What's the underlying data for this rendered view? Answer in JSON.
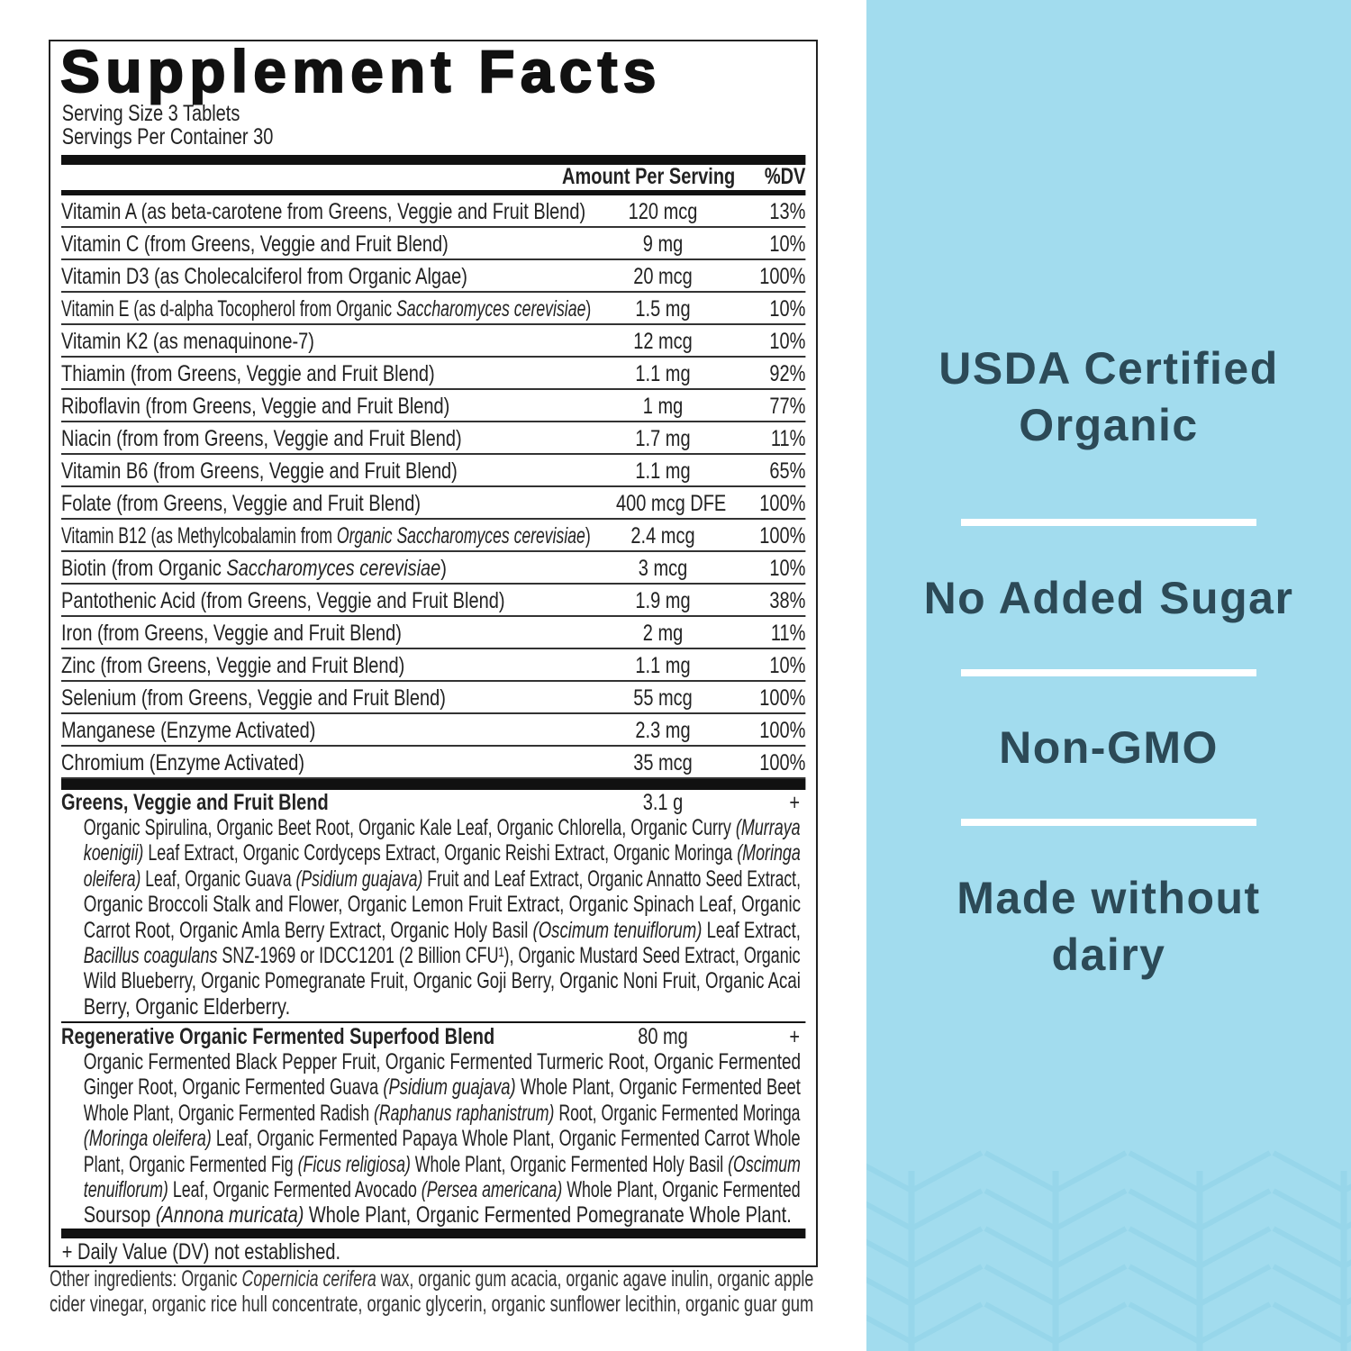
{
  "label": {
    "title": "Supplement Facts",
    "serving_size": "Serving Size 3 Tablets",
    "servings_per_container": "Servings Per Container 30",
    "header_amount": "Amount Per Serving",
    "header_dv": "%DV",
    "rows": [
      {
        "name": [
          {
            "t": "Vitamin A (as beta-carotene from Greens, Veggie and Fruit Blend)"
          }
        ],
        "amount": "120 mcg",
        "dv": "13%"
      },
      {
        "name": [
          {
            "t": "Vitamin C (from Greens, Veggie and Fruit Blend)"
          }
        ],
        "amount": "9 mg",
        "dv": "10%"
      },
      {
        "name": [
          {
            "t": "Vitamin D3 (as Cholecalciferol from Organic Algae)"
          }
        ],
        "amount": "20 mcg",
        "dv": "100%"
      },
      {
        "name": [
          {
            "t": "Vitamin E (as d-alpha Tocopherol from Organic "
          },
          {
            "t": "Saccharomyces cerevisiae",
            "i": true
          },
          {
            "t": ")"
          }
        ],
        "amount": "1.5 mg",
        "dv": "10%"
      },
      {
        "name": [
          {
            "t": "Vitamin K2 (as menaquinone-7)"
          }
        ],
        "amount": "12 mcg",
        "dv": "10%"
      },
      {
        "name": [
          {
            "t": "Thiamin (from Greens, Veggie and Fruit Blend)"
          }
        ],
        "amount": "1.1 mg",
        "dv": "92%"
      },
      {
        "name": [
          {
            "t": "Riboflavin (from Greens, Veggie and Fruit Blend)"
          }
        ],
        "amount": "1 mg",
        "dv": "77%"
      },
      {
        "name": [
          {
            "t": "Niacin (from from Greens, Veggie and Fruit Blend)"
          }
        ],
        "amount": "1.7 mg",
        "dv": "11%"
      },
      {
        "name": [
          {
            "t": "Vitamin B6 (from Greens, Veggie and Fruit Blend)"
          }
        ],
        "amount": "1.1 mg",
        "dv": "65%"
      },
      {
        "name": [
          {
            "t": "Folate (from Greens, Veggie and Fruit Blend)"
          }
        ],
        "amount": "400 mcg DFE",
        "dv": "100%"
      },
      {
        "name": [
          {
            "t": "Vitamin B12 (as Methylcobalamin from "
          },
          {
            "t": "Organic Saccharomyces cerevisiae",
            "i": true
          },
          {
            "t": ")"
          }
        ],
        "amount": "2.4 mcg",
        "dv": "100%"
      },
      {
        "name": [
          {
            "t": "Biotin (from Organic "
          },
          {
            "t": "Saccharomyces cerevisiae",
            "i": true
          },
          {
            "t": ")"
          }
        ],
        "amount": "3 mcg",
        "dv": "10%"
      },
      {
        "name": [
          {
            "t": "Pantothenic Acid (from Greens, Veggie and Fruit Blend)"
          }
        ],
        "amount": "1.9 mg",
        "dv": "38%"
      },
      {
        "name": [
          {
            "t": "Iron (from Greens, Veggie and Fruit Blend)"
          }
        ],
        "amount": "2 mg",
        "dv": "11%"
      },
      {
        "name": [
          {
            "t": "Zinc (from Greens, Veggie and Fruit Blend)"
          }
        ],
        "amount": "1.1 mg",
        "dv": "10%"
      },
      {
        "name": [
          {
            "t": "Selenium (from Greens, Veggie and Fruit Blend)"
          }
        ],
        "amount": "55 mcg",
        "dv": "100%"
      },
      {
        "name": [
          {
            "t": "Manganese (Enzyme Activated)"
          }
        ],
        "amount": "2.3 mg",
        "dv": "100%"
      },
      {
        "name": [
          {
            "t": "Chromium (Enzyme Activated)"
          }
        ],
        "amount": "35 mcg",
        "dv": "100%"
      }
    ],
    "blends": [
      {
        "name": "Greens, Veggie and Fruit Blend",
        "amount": "3.1 g",
        "dv": "+",
        "lines": [
          [
            {
              "t": "Organic Spirulina, Organic Beet Root, Organic Kale Leaf, Organic Chlorella, Organic Curry "
            },
            {
              "t": "(Murraya",
              "i": true
            }
          ],
          [
            {
              "t": "koenigii)",
              "i": true
            },
            {
              "t": " Leaf Extract, Organic Cordyceps Extract, Organic Reishi Extract, Organic Moringa "
            },
            {
              "t": "(Moringa",
              "i": true
            }
          ],
          [
            {
              "t": "oleifera)",
              "i": true
            },
            {
              "t": " Leaf, Organic Guava "
            },
            {
              "t": "(Psidium guajava)",
              "i": true
            },
            {
              "t": " Fruit and Leaf Extract, Organic Annatto Seed Extract,"
            }
          ],
          [
            {
              "t": "Organic Broccoli Stalk and Flower, Organic Lemon Fruit Extract, Organic Spinach Leaf, Organic"
            }
          ],
          [
            {
              "t": "Carrot Root, Organic Amla Berry Extract, Organic Holy Basil "
            },
            {
              "t": "(Oscimum tenuiflorum)",
              "i": true
            },
            {
              "t": " Leaf Extract,"
            }
          ],
          [
            {
              "t": "Bacillus coagulans",
              "i": true
            },
            {
              "t": " SNZ-1969 or IDCC1201 (2 Billion CFU¹), Organic Mustard Seed Extract, Organic"
            }
          ],
          [
            {
              "t": "Wild Blueberry, Organic Pomegranate Fruit, Organic Goji Berry, Organic Noni Fruit, Organic Acai"
            }
          ],
          [
            {
              "t": "Berry, Organic Elderberry."
            }
          ]
        ]
      },
      {
        "name": "Regenerative Organic Fermented Superfood Blend",
        "amount": "80 mg",
        "dv": "+",
        "lines": [
          [
            {
              "t": "Organic Fermented Black Pepper Fruit, Organic Fermented Turmeric Root, Organic Fermented"
            }
          ],
          [
            {
              "t": "Ginger Root, Organic Fermented Guava "
            },
            {
              "t": "(Psidium guajava)",
              "i": true
            },
            {
              "t": " Whole Plant, Organic Fermented Beet"
            }
          ],
          [
            {
              "t": "Whole Plant, Organic Fermented Radish "
            },
            {
              "t": "(Raphanus raphanistrum)",
              "i": true
            },
            {
              "t": " Root, Organic Fermented Moringa"
            }
          ],
          [
            {
              "t": "(Moringa oleifera)",
              "i": true
            },
            {
              "t": " Leaf, Organic Fermented Papaya Whole Plant, Organic Fermented Carrot Whole"
            }
          ],
          [
            {
              "t": "Plant, Organic Fermented Fig "
            },
            {
              "t": "(Ficus religiosa)",
              "i": true
            },
            {
              "t": " Whole Plant, Organic Fermented Holy Basil "
            },
            {
              "t": "(Oscimum",
              "i": true
            }
          ],
          [
            {
              "t": "tenuiflorum)",
              "i": true
            },
            {
              "t": " Leaf, Organic Fermented Avocado "
            },
            {
              "t": "(Persea americana)",
              "i": true
            },
            {
              "t": " Whole Plant, Organic Fermented"
            }
          ],
          [
            {
              "t": "Soursop "
            },
            {
              "t": "(Annona muricata)",
              "i": true
            },
            {
              "t": " Whole Plant, Organic Fermented Pomegranate Whole Plant."
            }
          ]
        ]
      }
    ],
    "footnote": "+ Daily Value (DV) not established."
  },
  "other_ingredients": [
    [
      {
        "t": "Other ingredients: Organic "
      },
      {
        "t": "Copernicia cerifera",
        "i": true
      },
      {
        "t": " wax, organic gum acacia, organic agave inulin, organic apple"
      }
    ],
    [
      {
        "t": "cider vinegar, organic rice hull concentrate, organic glycerin, organic sunflower lecithin, organic guar gum"
      }
    ]
  ],
  "claims": {
    "c1_line1": "USDA Certified",
    "c1_line2": "Organic",
    "c2": "No Added Sugar",
    "c3": "Non-GMO",
    "c4_line1": "Made without",
    "c4_line2": "dairy"
  },
  "colors": {
    "panel": "#a2dcee",
    "claim_text": "#2c4a57",
    "divider": "#ffffff"
  }
}
